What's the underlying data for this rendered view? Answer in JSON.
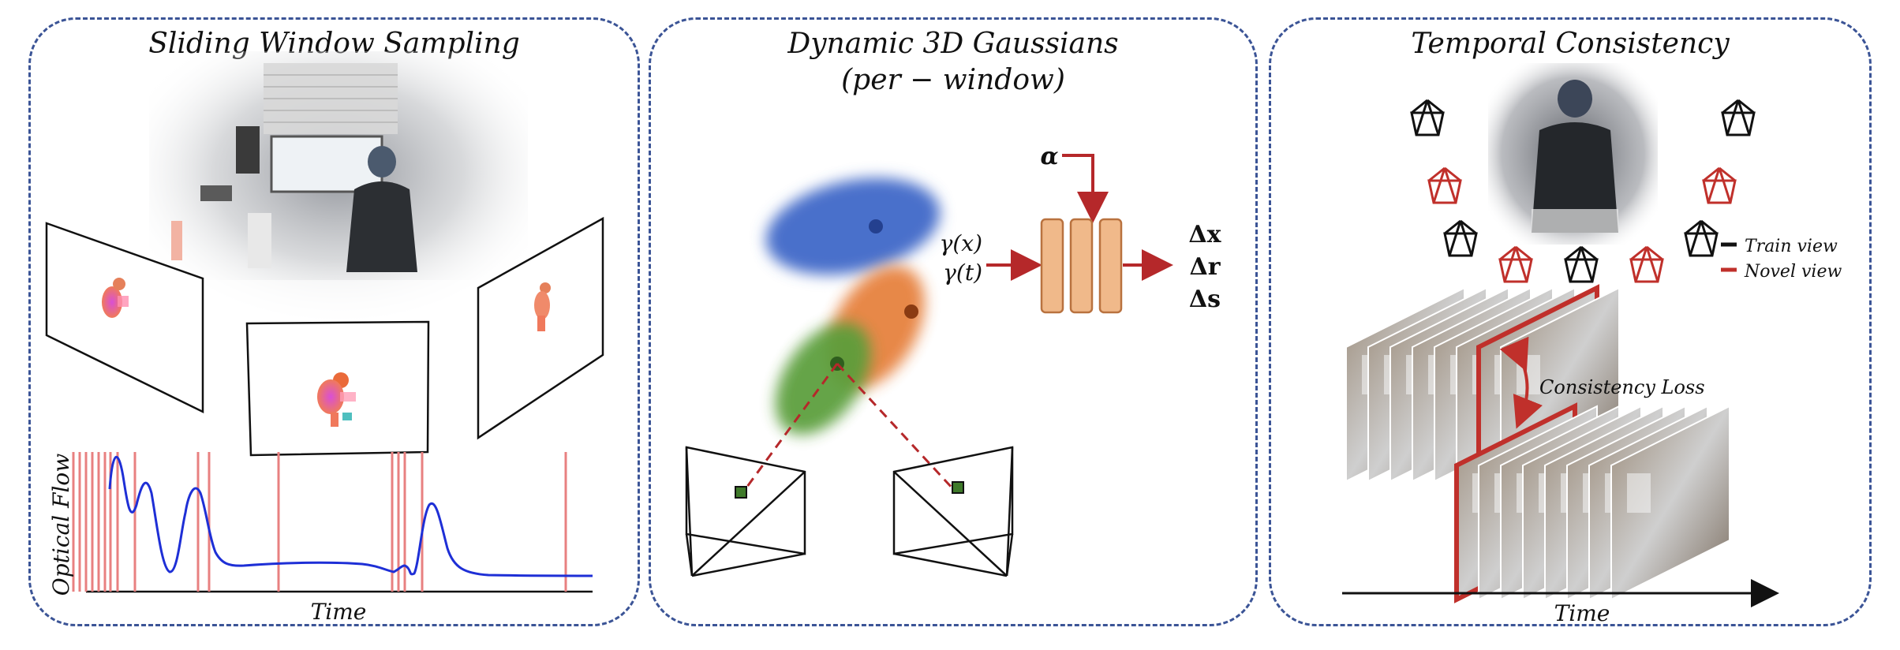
{
  "panels": {
    "sliding": {
      "title": "Sliding Window Sampling",
      "ylabel": "Optical Flow",
      "xlabel": "Time"
    },
    "dynamic": {
      "title_line1": "Dynamic 3D Gaussians",
      "title_line2": "(per − window)",
      "input_alpha": "α",
      "input_gx": "γ(x)",
      "input_gt": "γ(t)",
      "out_dx": "Δx",
      "out_dr": "Δr",
      "out_ds": "Δs"
    },
    "temporal": {
      "title": "Temporal Consistency",
      "legend_train": "Train view",
      "legend_novel": "Novel view",
      "consistency_label": "Consistency Loss",
      "time_label": "Time"
    }
  },
  "colors": {
    "panel_border": "#3b5496",
    "flow_curve": "#1e2fd6",
    "sample_lines": "#e88080",
    "mlp_fill": "#f0b98a",
    "mlp_stroke": "#b9723f",
    "arrow_red": "#b5282a",
    "gauss_blue": "#4a6fcb",
    "gauss_orange": "#e67f3a",
    "gauss_green": "#5a9e3a",
    "novel_view": "#c0302b",
    "train_view": "#111111"
  },
  "icons": [
    "camera-frustum-icon",
    "camera-pyramid-icon",
    "pixel-marker-icon"
  ]
}
